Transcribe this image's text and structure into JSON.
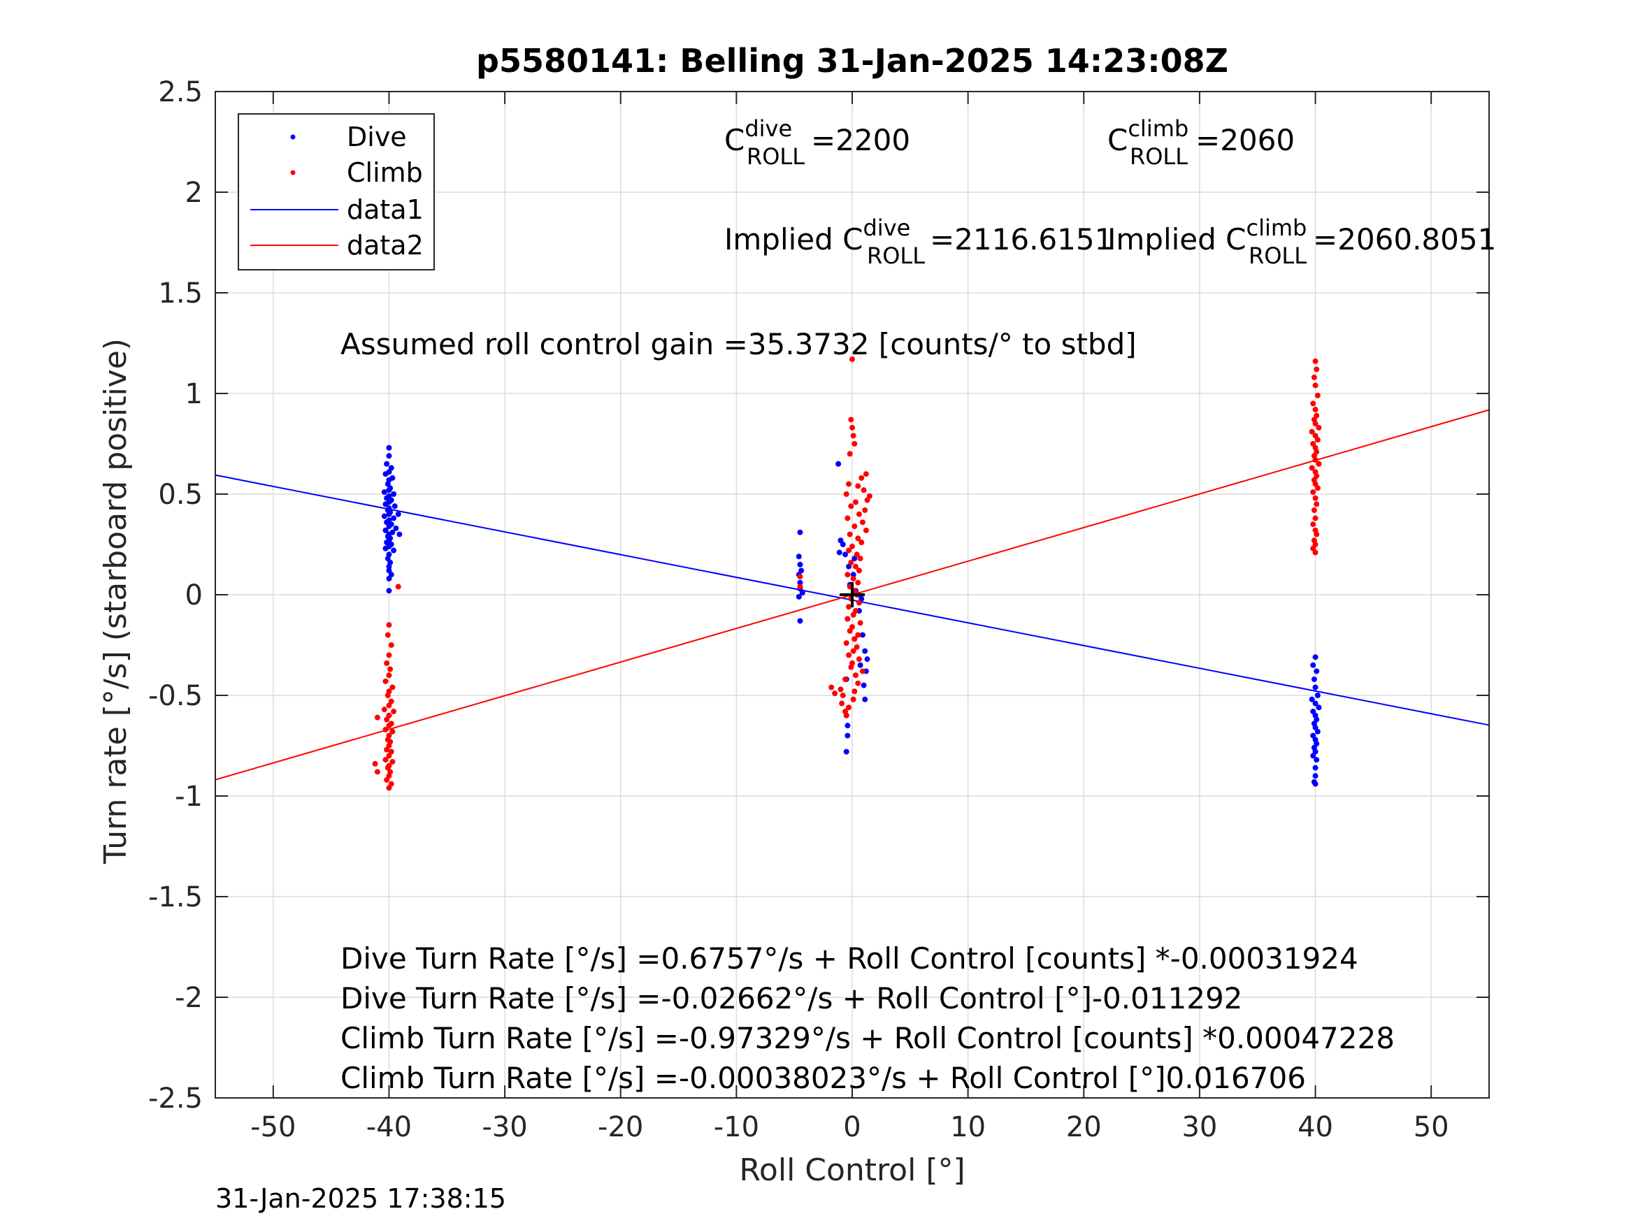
{
  "chart_data": {
    "type": "scatter",
    "title": "p5580141: Belling 31-Jan-2025 14:23:08Z",
    "xlabel": "Roll Control [°]",
    "ylabel": "Turn rate [°/s] (starboard positive)",
    "xlim": [
      -55,
      55
    ],
    "ylim": [
      -2.5,
      2.5
    ],
    "xticks": [
      -50,
      -40,
      -30,
      -20,
      -10,
      0,
      10,
      20,
      30,
      40,
      50
    ],
    "yticks": [
      -2.5,
      -2,
      -1.5,
      -1,
      -0.5,
      0,
      0.5,
      1,
      1.5,
      2,
      2.5
    ],
    "xtick_labels": [
      "-50",
      "-40",
      "-30",
      "-20",
      "-10",
      "0",
      "10",
      "20",
      "30",
      "40",
      "50"
    ],
    "ytick_labels": [
      "-2.5",
      "-2",
      "-1.5",
      "-1",
      "-0.5",
      "0",
      "0.5",
      "1",
      "1.5",
      "2",
      "2.5"
    ],
    "grid": true,
    "legend_position": "top-left",
    "series": [
      {
        "name": "Dive",
        "kind": "scatter",
        "color": "#0000ff",
        "points": [
          [
            -40,
            0.73
          ],
          [
            -40,
            0.69
          ],
          [
            -40.2,
            0.65
          ],
          [
            -39.8,
            0.63
          ],
          [
            -40,
            0.61
          ],
          [
            -40.3,
            0.6
          ],
          [
            -39.7,
            0.58
          ],
          [
            -40,
            0.57
          ],
          [
            -40.1,
            0.55
          ],
          [
            -39.9,
            0.53
          ],
          [
            -40,
            0.52
          ],
          [
            -40.4,
            0.51
          ],
          [
            -39.6,
            0.5
          ],
          [
            -40,
            0.49
          ],
          [
            -40.2,
            0.48
          ],
          [
            -39.8,
            0.47
          ],
          [
            -40,
            0.46
          ],
          [
            -40.3,
            0.45
          ],
          [
            -39.5,
            0.44
          ],
          [
            -40,
            0.43
          ],
          [
            -40.1,
            0.42
          ],
          [
            -39.9,
            0.41
          ],
          [
            -40,
            0.4
          ],
          [
            -39.2,
            0.4
          ],
          [
            -40.4,
            0.39
          ],
          [
            -39.6,
            0.38
          ],
          [
            -40,
            0.37
          ],
          [
            -40.2,
            0.36
          ],
          [
            -39.8,
            0.35
          ],
          [
            -40,
            0.34
          ],
          [
            -39.4,
            0.33
          ],
          [
            -40.3,
            0.32
          ],
          [
            -39.7,
            0.31
          ],
          [
            -40,
            0.3
          ],
          [
            -39.1,
            0.3
          ],
          [
            -40.1,
            0.29
          ],
          [
            -39.9,
            0.28
          ],
          [
            -40,
            0.27
          ],
          [
            -40.2,
            0.26
          ],
          [
            -39.8,
            0.25
          ],
          [
            -40,
            0.24
          ],
          [
            -40.3,
            0.23
          ],
          [
            -39.6,
            0.22
          ],
          [
            -40,
            0.2
          ],
          [
            -40.1,
            0.18
          ],
          [
            -39.9,
            0.16
          ],
          [
            -40,
            0.14
          ],
          [
            -40,
            0.12
          ],
          [
            -39.8,
            0.1
          ],
          [
            -40,
            0.08
          ],
          [
            -40,
            0.02
          ],
          [
            40,
            -0.31
          ],
          [
            39.8,
            -0.35
          ],
          [
            40.1,
            -0.38
          ],
          [
            39.9,
            -0.42
          ],
          [
            40,
            -0.46
          ],
          [
            40.2,
            -0.5
          ],
          [
            39.7,
            -0.52
          ],
          [
            40,
            -0.54
          ],
          [
            40.3,
            -0.56
          ],
          [
            39.8,
            -0.58
          ],
          [
            40,
            -0.6
          ],
          [
            40.1,
            -0.62
          ],
          [
            39.9,
            -0.64
          ],
          [
            40,
            -0.66
          ],
          [
            40.2,
            -0.68
          ],
          [
            39.8,
            -0.7
          ],
          [
            40,
            -0.72
          ],
          [
            40.1,
            -0.74
          ],
          [
            39.9,
            -0.76
          ],
          [
            40,
            -0.78
          ],
          [
            39.8,
            -0.8
          ],
          [
            40.1,
            -0.82
          ],
          [
            40,
            -0.86
          ],
          [
            40,
            -0.9
          ],
          [
            39.9,
            -0.93
          ],
          [
            40,
            -0.94
          ],
          [
            -4.5,
            0.31
          ],
          [
            -4.6,
            0.19
          ],
          [
            -4.5,
            0.15
          ],
          [
            -4.4,
            0.12
          ],
          [
            -4.6,
            0.1
          ],
          [
            -4.5,
            0.06
          ],
          [
            -4.5,
            0.03
          ],
          [
            -4.3,
            0.01
          ],
          [
            -4.6,
            -0.01
          ],
          [
            -4.5,
            -0.13
          ],
          [
            -1.2,
            0.65
          ],
          [
            -1,
            0.27
          ],
          [
            -0.8,
            0.25
          ],
          [
            -1.1,
            0.21
          ],
          [
            -0.6,
            0.2
          ],
          [
            0.2,
            0.18
          ],
          [
            -0.3,
            0.14
          ],
          [
            0.1,
            0.1
          ],
          [
            -0.2,
            0.05
          ],
          [
            0.3,
            0.02
          ],
          [
            0.5,
            0
          ],
          [
            0.8,
            -0.02
          ],
          [
            0.6,
            -0.08
          ],
          [
            -0.4,
            -0.12
          ],
          [
            0.9,
            -0.2
          ],
          [
            1.1,
            -0.28
          ],
          [
            1.3,
            -0.32
          ],
          [
            0.7,
            -0.35
          ],
          [
            1.2,
            -0.38
          ],
          [
            -0.5,
            -0.42
          ],
          [
            1,
            -0.45
          ],
          [
            1.1,
            -0.52
          ],
          [
            -0.5,
            -0.6
          ],
          [
            -0.4,
            -0.65
          ],
          [
            -0.4,
            -0.7
          ],
          [
            -0.5,
            -0.78
          ]
        ]
      },
      {
        "name": "Climb",
        "kind": "scatter",
        "color": "#ff0000",
        "points": [
          [
            -40,
            -0.15
          ],
          [
            -40.1,
            -0.2
          ],
          [
            -39.8,
            -0.25
          ],
          [
            -40,
            -0.3
          ],
          [
            -40.2,
            -0.34
          ],
          [
            -39.9,
            -0.37
          ],
          [
            -40,
            -0.4
          ],
          [
            -40.3,
            -0.43
          ],
          [
            -39.7,
            -0.46
          ],
          [
            -40,
            -0.48
          ],
          [
            -40.1,
            -0.5
          ],
          [
            -39.8,
            -0.53
          ],
          [
            -40,
            -0.55
          ],
          [
            -40.4,
            -0.57
          ],
          [
            -39.6,
            -0.58
          ],
          [
            -40,
            -0.6
          ],
          [
            -41,
            -0.61
          ],
          [
            -40.2,
            -0.62
          ],
          [
            -39.8,
            -0.64
          ],
          [
            -40,
            -0.65
          ],
          [
            -40.3,
            -0.67
          ],
          [
            -39.7,
            -0.68
          ],
          [
            -40,
            -0.7
          ],
          [
            -40.1,
            -0.72
          ],
          [
            -39.9,
            -0.73
          ],
          [
            -40,
            -0.75
          ],
          [
            -40.2,
            -0.77
          ],
          [
            -39.8,
            -0.78
          ],
          [
            -40,
            -0.8
          ],
          [
            -40.3,
            -0.82
          ],
          [
            -39.7,
            -0.83
          ],
          [
            -40,
            -0.85
          ],
          [
            -41.2,
            -0.84
          ],
          [
            -40.1,
            -0.86
          ],
          [
            -39.9,
            -0.88
          ],
          [
            -40,
            -0.9
          ],
          [
            -41,
            -0.88
          ],
          [
            -40.2,
            -0.92
          ],
          [
            -39.8,
            -0.94
          ],
          [
            -40,
            -0.96
          ],
          [
            -39.2,
            0.04
          ],
          [
            40,
            1.16
          ],
          [
            40.1,
            1.12
          ],
          [
            39.9,
            1.08
          ],
          [
            40,
            1.04
          ],
          [
            40.2,
            0.99
          ],
          [
            39.8,
            0.95
          ],
          [
            40,
            0.92
          ],
          [
            40.1,
            0.89
          ],
          [
            39.9,
            0.87
          ],
          [
            40,
            0.85
          ],
          [
            40.3,
            0.83
          ],
          [
            39.7,
            0.81
          ],
          [
            40,
            0.79
          ],
          [
            40.2,
            0.77
          ],
          [
            39.8,
            0.75
          ],
          [
            40,
            0.73
          ],
          [
            40.1,
            0.71
          ],
          [
            39.9,
            0.69
          ],
          [
            40,
            0.67
          ],
          [
            40.3,
            0.65
          ],
          [
            39.7,
            0.63
          ],
          [
            40,
            0.61
          ],
          [
            40.1,
            0.59
          ],
          [
            39.9,
            0.57
          ],
          [
            40,
            0.55
          ],
          [
            40.2,
            0.53
          ],
          [
            39.8,
            0.51
          ],
          [
            40,
            0.48
          ],
          [
            40.1,
            0.45
          ],
          [
            39.9,
            0.42
          ],
          [
            40,
            0.38
          ],
          [
            39.8,
            0.35
          ],
          [
            40,
            0.32
          ],
          [
            40.1,
            0.3
          ],
          [
            39.9,
            0.27
          ],
          [
            40,
            0.25
          ],
          [
            39.8,
            0.23
          ],
          [
            40,
            0.21
          ],
          [
            -4.5,
            0.09
          ],
          [
            -4.5,
            0.04
          ],
          [
            0,
            1.17
          ],
          [
            -0.1,
            0.87
          ],
          [
            0,
            0.83
          ],
          [
            0.1,
            0.79
          ],
          [
            0.2,
            0.75
          ],
          [
            -0.2,
            0.7
          ],
          [
            1.2,
            0.6
          ],
          [
            0.8,
            0.58
          ],
          [
            -0.3,
            0.55
          ],
          [
            0.5,
            0.54
          ],
          [
            1,
            0.52
          ],
          [
            -0.5,
            0.5
          ],
          [
            1.5,
            0.49
          ],
          [
            1.3,
            0.47
          ],
          [
            0.3,
            0.46
          ],
          [
            -0.1,
            0.44
          ],
          [
            1.1,
            0.42
          ],
          [
            0.6,
            0.4
          ],
          [
            -0.4,
            0.38
          ],
          [
            0.9,
            0.36
          ],
          [
            0.2,
            0.34
          ],
          [
            1.2,
            0.32
          ],
          [
            -0.2,
            0.3
          ],
          [
            0.5,
            0.28
          ],
          [
            0.8,
            0.26
          ],
          [
            0,
            0.24
          ],
          [
            -0.3,
            0.22
          ],
          [
            0.4,
            0.2
          ],
          [
            0.7,
            0.18
          ],
          [
            -0.1,
            0.16
          ],
          [
            0.3,
            0.14
          ],
          [
            0.6,
            0.12
          ],
          [
            -0.4,
            0.1
          ],
          [
            0.1,
            0.08
          ],
          [
            0.5,
            0.06
          ],
          [
            -0.2,
            0.04
          ],
          [
            0.2,
            0.02
          ],
          [
            0.4,
            0
          ],
          [
            -0.1,
            -0.02
          ],
          [
            0.6,
            -0.04
          ],
          [
            -0.3,
            -0.06
          ],
          [
            0.3,
            -0.08
          ],
          [
            0.1,
            -0.1
          ],
          [
            -0.4,
            -0.12
          ],
          [
            0.7,
            -0.14
          ],
          [
            0,
            -0.16
          ],
          [
            -0.2,
            -0.18
          ],
          [
            0.5,
            -0.2
          ],
          [
            0.2,
            -0.22
          ],
          [
            -0.5,
            -0.24
          ],
          [
            0.4,
            -0.26
          ],
          [
            0.1,
            -0.28
          ],
          [
            -0.3,
            -0.3
          ],
          [
            0.6,
            -0.32
          ],
          [
            0,
            -0.34
          ],
          [
            -0.1,
            -0.36
          ],
          [
            0.9,
            -0.38
          ],
          [
            0.3,
            -0.4
          ],
          [
            -0.6,
            -0.42
          ],
          [
            0.5,
            -0.44
          ],
          [
            -1.8,
            -0.46
          ],
          [
            -1,
            -0.47
          ],
          [
            0.2,
            -0.48
          ],
          [
            -1.5,
            -0.49
          ],
          [
            -0.8,
            -0.5
          ],
          [
            0.1,
            -0.52
          ],
          [
            -0.9,
            -0.54
          ],
          [
            -0.3,
            -0.56
          ],
          [
            -0.6,
            -0.58
          ],
          [
            -0.5,
            -0.6
          ]
        ]
      },
      {
        "name": "data1",
        "kind": "line",
        "color": "#0000ff",
        "x": [
          -55,
          55
        ],
        "y": [
          0.5945,
          -0.6478
        ]
      },
      {
        "name": "data2",
        "kind": "line",
        "color": "#ff0000",
        "x": [
          -55,
          55
        ],
        "y": [
          -0.9192,
          0.9184
        ]
      }
    ],
    "crosshair": {
      "x": 0,
      "y": 0,
      "color": "#000000"
    },
    "annotations": {
      "c_dive": {
        "base": "C",
        "sup": "dive",
        "sub": "ROLL",
        "value": " =2200"
      },
      "c_climb": {
        "base": "C",
        "sup": "climb",
        "sub": "ROLL",
        "value": " =2060"
      },
      "implied_dive": {
        "base": "Implied C",
        "sup": "dive",
        "sub": "ROLL",
        "value": " =2116.6151"
      },
      "implied_climb": {
        "base": "Implied C",
        "sup": "climb",
        "sub": "ROLL",
        "value": " =2060.8051"
      },
      "gain": "Assumed roll control gain =35.3732 [counts/° to stbd]",
      "eq1": "Dive Turn Rate [°/s] =0.6757°/s + Roll Control [counts] *-0.00031924",
      "eq2": "Dive Turn Rate [°/s] =-0.02662°/s + Roll Control [°]-0.011292",
      "eq3": "Climb Turn Rate [°/s] =-0.97329°/s + Roll Control [counts] *0.00047228",
      "eq4": "Climb Turn Rate [°/s] =-0.00038023°/s + Roll Control [°]0.016706"
    },
    "footer": "31-Jan-2025 17:38:15"
  }
}
